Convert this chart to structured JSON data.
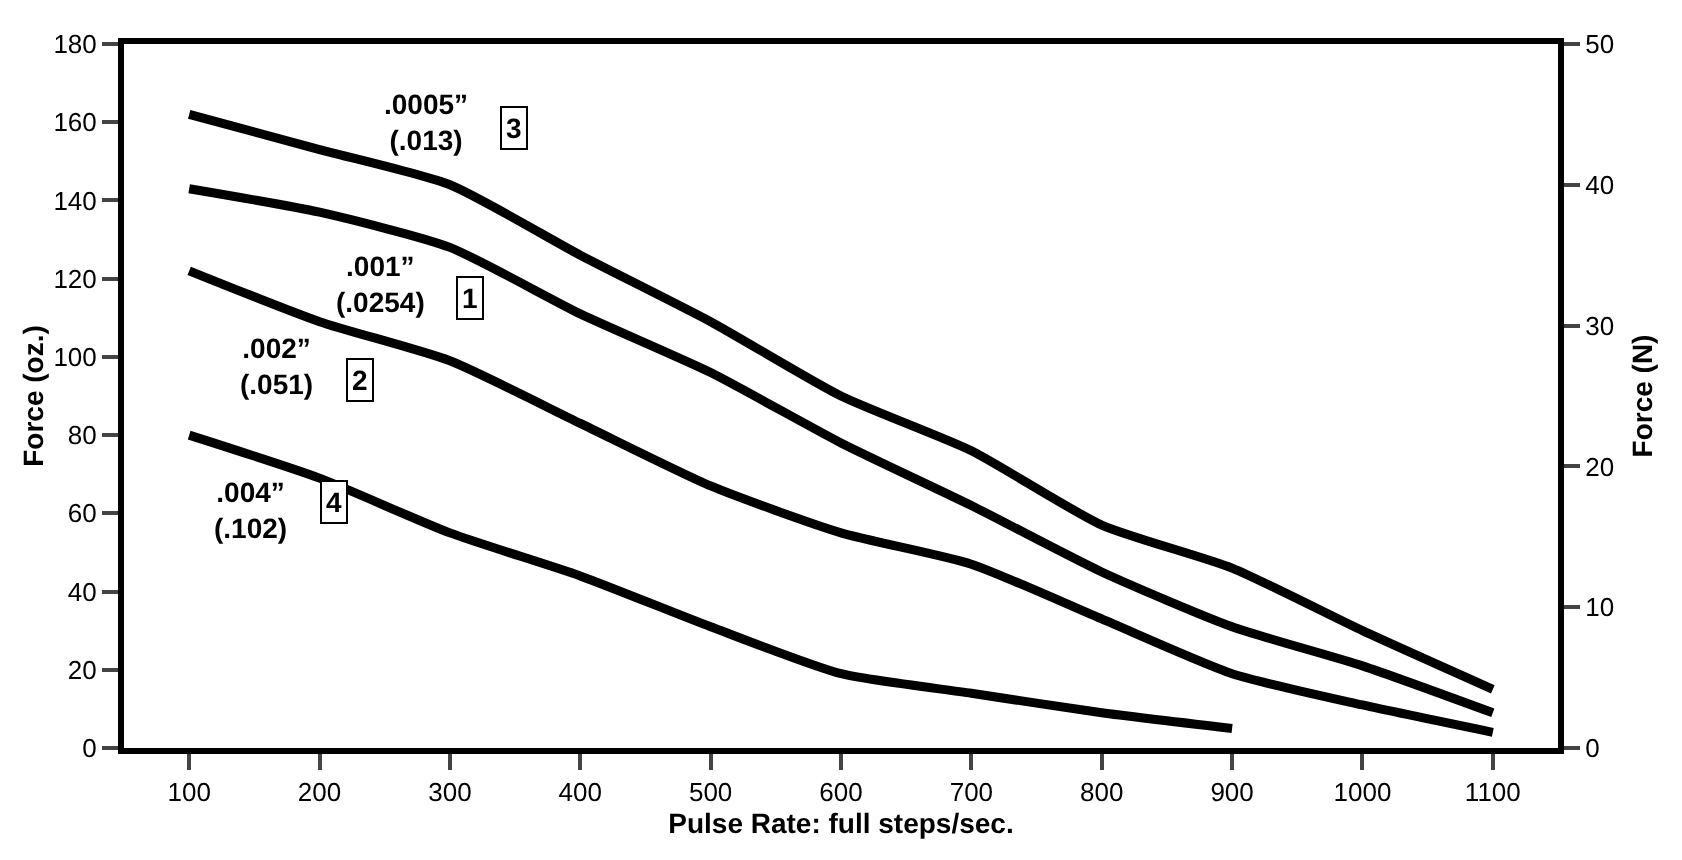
{
  "chart_data": {
    "type": "line",
    "xlabel": "Pulse Rate: full steps/sec.",
    "ylabel": "Force (oz.)",
    "y2label": "Force (N)",
    "x": [
      100,
      200,
      300,
      400,
      500,
      600,
      700,
      800,
      900,
      1000,
      1100
    ],
    "xlim": [
      50,
      1150
    ],
    "xticks": [
      100,
      200,
      300,
      400,
      500,
      600,
      700,
      800,
      900,
      1000,
      1100
    ],
    "ylim": [
      0,
      180
    ],
    "yticks": [
      0,
      20,
      40,
      60,
      80,
      100,
      120,
      140,
      160,
      180
    ],
    "y2lim": [
      0,
      50
    ],
    "y2ticks": [
      0,
      10,
      20,
      30,
      40,
      50
    ],
    "grid": false,
    "legend": "top left",
    "marker": "none",
    "line_style": "solid",
    "series": [
      {
        "name": ".0005”\n(.013)",
        "color": "#000000",
        "values": [
          162,
          153,
          144,
          126,
          109,
          90,
          76,
          57,
          46,
          30,
          15
        ]
      },
      {
        "name": ".001”\n(.0254)",
        "color": "#000000",
        "values": [
          143,
          137,
          128,
          111,
          96,
          78,
          62,
          45,
          31,
          21,
          9
        ]
      },
      {
        "name": ".002”\n(.051)",
        "color": "#000000",
        "values": [
          122,
          109,
          99,
          83,
          67,
          55,
          47,
          33,
          19,
          11,
          4
        ]
      },
      {
        "name": ".004”\n(.102)",
        "color": "#000000",
        "values": [
          80,
          69,
          55,
          44,
          31,
          19,
          14,
          9,
          5,
          null,
          null
        ]
      }
    ],
    "annotations": [
      "3",
      "1",
      "2",
      "4"
    ]
  }
}
